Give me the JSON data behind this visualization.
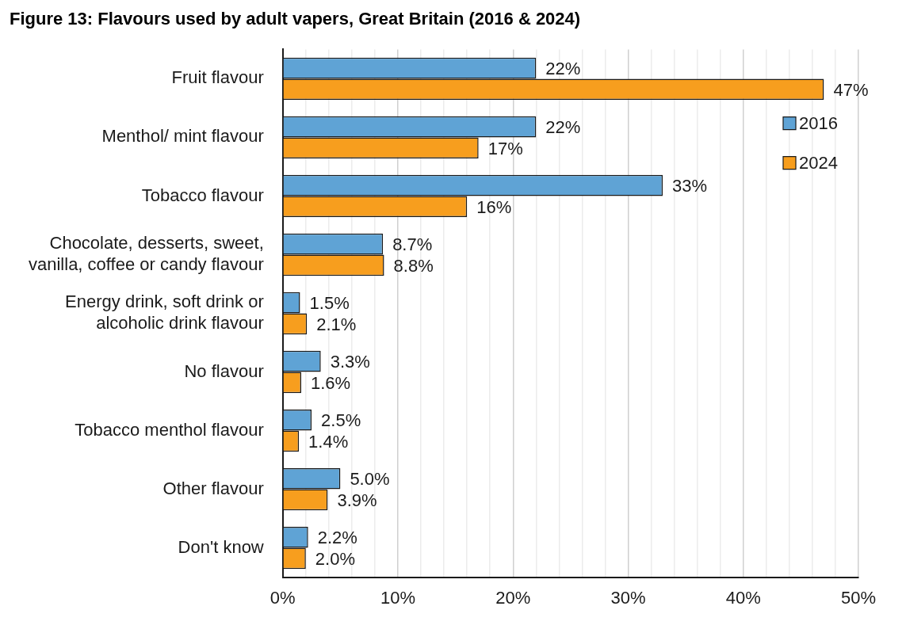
{
  "chart_data": {
    "type": "bar",
    "orientation": "horizontal",
    "title": "Figure 13: Flavours used by adult vapers, Great Britain (2016 & 2024)",
    "categories": [
      "Fruit flavour",
      "Menthol/ mint flavour",
      "Tobacco flavour",
      "Chocolate, desserts, sweet, vanilla, coffee or candy flavour",
      "Energy drink, soft drink or alcoholic drink flavour",
      "No flavour",
      "Tobacco menthol flavour",
      "Other flavour",
      "Don't know"
    ],
    "series": [
      {
        "name": "2016",
        "color": "#5fa3d5",
        "values": [
          22,
          22,
          33,
          8.7,
          1.5,
          3.3,
          2.5,
          5.0,
          2.2
        ],
        "value_labels": [
          "22%",
          "22%",
          "33%",
          "8.7%",
          "1.5%",
          "3.3%",
          "2.5%",
          "5.0%",
          "2.2%"
        ]
      },
      {
        "name": "2024",
        "color": "#f79e1e",
        "values": [
          47,
          17,
          16,
          8.8,
          2.1,
          1.6,
          1.4,
          3.9,
          2.0
        ],
        "value_labels": [
          "47%",
          "17%",
          "16%",
          "8.8%",
          "2.1%",
          "1.6%",
          "1.4%",
          "3.9%",
          "2.0%"
        ]
      }
    ],
    "xlim": [
      0,
      50
    ],
    "xticks": [
      {
        "value": 0,
        "label": "0%"
      },
      {
        "value": 2,
        "label": null
      },
      {
        "value": 4,
        "label": null
      },
      {
        "value": 6,
        "label": null
      },
      {
        "value": 8,
        "label": null
      },
      {
        "value": 10,
        "label": "10%"
      },
      {
        "value": 12,
        "label": null
      },
      {
        "value": 14,
        "label": null
      },
      {
        "value": 16,
        "label": null
      },
      {
        "value": 18,
        "label": null
      },
      {
        "value": 20,
        "label": "20%"
      },
      {
        "value": 22,
        "label": null
      },
      {
        "value": 24,
        "label": null
      },
      {
        "value": 26,
        "label": null
      },
      {
        "value": 28,
        "label": null
      },
      {
        "value": 30,
        "label": "30%"
      },
      {
        "value": 32,
        "label": null
      },
      {
        "value": 34,
        "label": null
      },
      {
        "value": 36,
        "label": null
      },
      {
        "value": 38,
        "label": null
      },
      {
        "value": 40,
        "label": "40%"
      },
      {
        "value": 42,
        "label": null
      },
      {
        "value": 44,
        "label": null
      },
      {
        "value": 46,
        "label": null
      },
      {
        "value": 48,
        "label": null
      },
      {
        "value": 50,
        "label": "50%"
      }
    ],
    "grid": "x",
    "legend": "right"
  }
}
